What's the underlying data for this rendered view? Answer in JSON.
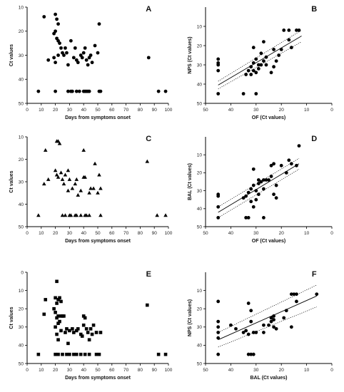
{
  "chart_data": [
    {
      "panel": "A",
      "type": "scatter",
      "marker": "circle",
      "xlabel": "Days from symptoms onset",
      "ylabel": "Ct values",
      "xlim": [
        0,
        100
      ],
      "ylim": [
        10,
        50
      ],
      "y_reversed": true,
      "xticks": [
        0,
        10,
        20,
        30,
        40,
        50,
        60,
        70,
        80,
        90,
        100
      ],
      "yticks": [
        10,
        20,
        30,
        40,
        50
      ],
      "points": [
        [
          12,
          14
        ],
        [
          15,
          32
        ],
        [
          8,
          45
        ],
        [
          20,
          13
        ],
        [
          21,
          15
        ],
        [
          22,
          17
        ],
        [
          20,
          20
        ],
        [
          19,
          21
        ],
        [
          21,
          23
        ],
        [
          22,
          24
        ],
        [
          23,
          25
        ],
        [
          24,
          27
        ],
        [
          19,
          31
        ],
        [
          20,
          33
        ],
        [
          22,
          30
        ],
        [
          25,
          29
        ],
        [
          26,
          30
        ],
        [
          27,
          27
        ],
        [
          28,
          29
        ],
        [
          29,
          34
        ],
        [
          31,
          24
        ],
        [
          33,
          31
        ],
        [
          34,
          27
        ],
        [
          35,
          32
        ],
        [
          36,
          33
        ],
        [
          38,
          30
        ],
        [
          39,
          31
        ],
        [
          40,
          29
        ],
        [
          41,
          27
        ],
        [
          42,
          32
        ],
        [
          43,
          34
        ],
        [
          44,
          31
        ],
        [
          45,
          30
        ],
        [
          46,
          33
        ],
        [
          48,
          26
        ],
        [
          50,
          29
        ],
        [
          51,
          17
        ],
        [
          20,
          45
        ],
        [
          29,
          45
        ],
        [
          31,
          45
        ],
        [
          32,
          45
        ],
        [
          35,
          45
        ],
        [
          37,
          45
        ],
        [
          40,
          45
        ],
        [
          41,
          45
        ],
        [
          42,
          45
        ],
        [
          43,
          45
        ],
        [
          44,
          45
        ],
        [
          51,
          45
        ],
        [
          52,
          45
        ],
        [
          86,
          31
        ],
        [
          93,
          45
        ],
        [
          98,
          45
        ]
      ]
    },
    {
      "panel": "B",
      "type": "scatter",
      "marker": "circle",
      "xlabel": "OF (Ct values)",
      "ylabel": "NPS (Ct values)",
      "xlim": [
        50,
        0
      ],
      "ylim": [
        0,
        50
      ],
      "y_reversed": true,
      "xticks": [
        50,
        40,
        30,
        20,
        10,
        0
      ],
      "yticks": [
        10,
        20,
        30,
        40,
        50
      ],
      "fit": {
        "x1": 45,
        "y1": 40.5,
        "x2": 12,
        "y2": 15
      },
      "ci_upper": {
        "x1": 45,
        "y1": 38.5,
        "x2": 12,
        "y2": 12
      },
      "ci_lower": {
        "x1": 45,
        "y1": 42.5,
        "x2": 12,
        "y2": 18
      },
      "points": [
        [
          45,
          27
        ],
        [
          45,
          29
        ],
        [
          45,
          30
        ],
        [
          45,
          33
        ],
        [
          45,
          45
        ],
        [
          35,
          45
        ],
        [
          30,
          45
        ],
        [
          34,
          35
        ],
        [
          33,
          33
        ],
        [
          32,
          31
        ],
        [
          31,
          29
        ],
        [
          30,
          27
        ],
        [
          29,
          30
        ],
        [
          31,
          33
        ],
        [
          32,
          35
        ],
        [
          30,
          34
        ],
        [
          29,
          32
        ],
        [
          28,
          30
        ],
        [
          27,
          28
        ],
        [
          26,
          26
        ],
        [
          31,
          21
        ],
        [
          28,
          24
        ],
        [
          26,
          30
        ],
        [
          24,
          34
        ],
        [
          23,
          31
        ],
        [
          22,
          28
        ],
        [
          23,
          22
        ],
        [
          21,
          25
        ],
        [
          20,
          22
        ],
        [
          19,
          12
        ],
        [
          17,
          12
        ],
        [
          17,
          17
        ],
        [
          16,
          21
        ],
        [
          14,
          12
        ],
        [
          13,
          12
        ],
        [
          27,
          18
        ]
      ]
    },
    {
      "panel": "C",
      "type": "scatter",
      "marker": "triangle",
      "xlabel": "Days from symptoms onset",
      "ylabel": "Ct values",
      "xlim": [
        0,
        100
      ],
      "ylim": [
        10,
        50
      ],
      "y_reversed": true,
      "xticks": [
        0,
        10,
        20,
        30,
        40,
        50,
        60,
        70,
        80,
        90,
        100
      ],
      "yticks": [
        10,
        20,
        30,
        40,
        50
      ],
      "points": [
        [
          13,
          16
        ],
        [
          12,
          31
        ],
        [
          15,
          29
        ],
        [
          8,
          45
        ],
        [
          21,
          12
        ],
        [
          22,
          12
        ],
        [
          23,
          13
        ],
        [
          20,
          25
        ],
        [
          21,
          27
        ],
        [
          22,
          28
        ],
        [
          24,
          26
        ],
        [
          25,
          29
        ],
        [
          26,
          31
        ],
        [
          27,
          27
        ],
        [
          29,
          25
        ],
        [
          29,
          34
        ],
        [
          30,
          29
        ],
        [
          32,
          33
        ],
        [
          34,
          31
        ],
        [
          35,
          29
        ],
        [
          36,
          36
        ],
        [
          38,
          34
        ],
        [
          40,
          28
        ],
        [
          40,
          16
        ],
        [
          41,
          28
        ],
        [
          44,
          35
        ],
        [
          45,
          33
        ],
        [
          47,
          33
        ],
        [
          48,
          22
        ],
        [
          50,
          35
        ],
        [
          51,
          27
        ],
        [
          52,
          33
        ],
        [
          25,
          45
        ],
        [
          27,
          45
        ],
        [
          30,
          45
        ],
        [
          31,
          45
        ],
        [
          34,
          45
        ],
        [
          35,
          45
        ],
        [
          38,
          45
        ],
        [
          41,
          45
        ],
        [
          42,
          45
        ],
        [
          44,
          45
        ],
        [
          52,
          45
        ],
        [
          85,
          21
        ],
        [
          92,
          45
        ],
        [
          98,
          45
        ]
      ]
    },
    {
      "panel": "D",
      "type": "scatter",
      "marker": "circle",
      "xlabel": "OF (Ct values)",
      "ylabel": "BAL (Ct values)",
      "xlim": [
        50,
        0
      ],
      "ylim": [
        0,
        50
      ],
      "y_reversed": true,
      "xticks": [
        50,
        40,
        30,
        20,
        10,
        0
      ],
      "yticks": [
        10,
        20,
        30,
        40,
        50
      ],
      "fit": {
        "x1": 45,
        "y1": 42,
        "x2": 13,
        "y2": 15
      },
      "ci_upper": {
        "x1": 45,
        "y1": 39,
        "x2": 13,
        "y2": 12
      },
      "ci_lower": {
        "x1": 45,
        "y1": 45,
        "x2": 13,
        "y2": 18
      },
      "points": [
        [
          45,
          32
        ],
        [
          45,
          33
        ],
        [
          45,
          39
        ],
        [
          45,
          45
        ],
        [
          34,
          45
        ],
        [
          33,
          45
        ],
        [
          35,
          34
        ],
        [
          34,
          33
        ],
        [
          33,
          31
        ],
        [
          32,
          29
        ],
        [
          31,
          27
        ],
        [
          30,
          30
        ],
        [
          32,
          36
        ],
        [
          31,
          39
        ],
        [
          30,
          35
        ],
        [
          29,
          32
        ],
        [
          29,
          26
        ],
        [
          28,
          25
        ],
        [
          27,
          24
        ],
        [
          26,
          24
        ],
        [
          31,
          18
        ],
        [
          29,
          24
        ],
        [
          27,
          29
        ],
        [
          25,
          24
        ],
        [
          23,
          32
        ],
        [
          22,
          34
        ],
        [
          22,
          27
        ],
        [
          24,
          16
        ],
        [
          23,
          15
        ],
        [
          20,
          16
        ],
        [
          18,
          20
        ],
        [
          17,
          13
        ],
        [
          16,
          15
        ],
        [
          14,
          16
        ],
        [
          13,
          5
        ],
        [
          27,
          45
        ],
        [
          24,
          22
        ]
      ]
    },
    {
      "panel": "E",
      "type": "scatter",
      "marker": "square",
      "xlabel": "Days from symptoms onset",
      "ylabel": "Ct values",
      "xlim": [
        0,
        100
      ],
      "ylim": [
        0,
        50
      ],
      "y_reversed": true,
      "xticks": [
        0,
        10,
        20,
        30,
        40,
        50,
        60,
        70,
        80,
        90,
        100
      ],
      "yticks": [
        0,
        10,
        20,
        30,
        40,
        50
      ],
      "points": [
        [
          13,
          15
        ],
        [
          12,
          23
        ],
        [
          8,
          45
        ],
        [
          21,
          5
        ],
        [
          20,
          14
        ],
        [
          22,
          15
        ],
        [
          21,
          17
        ],
        [
          23,
          14
        ],
        [
          24,
          16
        ],
        [
          19,
          20
        ],
        [
          20,
          22
        ],
        [
          21,
          25
        ],
        [
          22,
          24
        ],
        [
          23,
          27
        ],
        [
          24,
          24
        ],
        [
          25,
          24
        ],
        [
          26,
          24
        ],
        [
          20,
          30
        ],
        [
          22,
          28
        ],
        [
          24,
          32
        ],
        [
          21,
          34
        ],
        [
          22,
          37
        ],
        [
          27,
          33
        ],
        [
          28,
          31
        ],
        [
          29,
          39
        ],
        [
          30,
          32
        ],
        [
          32,
          31
        ],
        [
          33,
          33
        ],
        [
          35,
          32
        ],
        [
          36,
          31
        ],
        [
          38,
          34
        ],
        [
          39,
          35
        ],
        [
          40,
          29
        ],
        [
          40,
          24
        ],
        [
          41,
          25
        ],
        [
          42,
          31
        ],
        [
          43,
          33
        ],
        [
          44,
          37
        ],
        [
          45,
          31
        ],
        [
          46,
          34
        ],
        [
          47,
          29
        ],
        [
          49,
          33
        ],
        [
          52,
          33
        ],
        [
          20,
          45
        ],
        [
          22,
          45
        ],
        [
          25,
          45
        ],
        [
          28,
          45
        ],
        [
          30,
          45
        ],
        [
          33,
          45
        ],
        [
          35,
          45
        ],
        [
          38,
          45
        ],
        [
          41,
          45
        ],
        [
          44,
          45
        ],
        [
          49,
          45
        ],
        [
          51,
          45
        ],
        [
          85,
          18
        ],
        [
          93,
          45
        ],
        [
          98,
          45
        ]
      ]
    },
    {
      "panel": "F",
      "type": "scatter",
      "marker": "circle",
      "xlabel": "BAL (Ct values)",
      "ylabel": "NPS (Ct values)",
      "xlim": [
        50,
        0
      ],
      "ylim": [
        0,
        50
      ],
      "y_reversed": true,
      "xticks": [
        50,
        40,
        30,
        20,
        10,
        0
      ],
      "yticks": [
        10,
        20,
        30,
        40,
        50
      ],
      "fit": {
        "x1": 45,
        "y1": 37,
        "x2": 6,
        "y2": 13
      },
      "ci_upper": {
        "x1": 45,
        "y1": 33,
        "x2": 6,
        "y2": 7
      },
      "ci_lower": {
        "x1": 45,
        "y1": 41,
        "x2": 6,
        "y2": 19
      },
      "points": [
        [
          45,
          16
        ],
        [
          45,
          27
        ],
        [
          45,
          30
        ],
        [
          45,
          33
        ],
        [
          45,
          36
        ],
        [
          45,
          45
        ],
        [
          40,
          29
        ],
        [
          38,
          31
        ],
        [
          35,
          33
        ],
        [
          34,
          32
        ],
        [
          33,
          34
        ],
        [
          32,
          27
        ],
        [
          31,
          33
        ],
        [
          33,
          17
        ],
        [
          32,
          21
        ],
        [
          30,
          33
        ],
        [
          31,
          45
        ],
        [
          32,
          45
        ],
        [
          33,
          45
        ],
        [
          27,
          29
        ],
        [
          27,
          33
        ],
        [
          25,
          29
        ],
        [
          24,
          27
        ],
        [
          24,
          25
        ],
        [
          23,
          26
        ],
        [
          23,
          30
        ],
        [
          22,
          31
        ],
        [
          19,
          25
        ],
        [
          18,
          21
        ],
        [
          16,
          30
        ],
        [
          16,
          12
        ],
        [
          15,
          12
        ],
        [
          14,
          12
        ],
        [
          14,
          16
        ],
        [
          6,
          12
        ],
        [
          23,
          24
        ]
      ]
    }
  ]
}
